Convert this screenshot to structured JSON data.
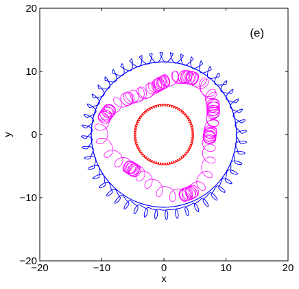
{
  "chart_data": {
    "type": "line",
    "title": "",
    "panel_label": "(e)",
    "xlabel": "x",
    "ylabel": "y",
    "xlim": [
      -20,
      20
    ],
    "ylim": [
      -20,
      20
    ],
    "xticks": [
      -20,
      -10,
      0,
      10,
      20
    ],
    "yticks": [
      -20,
      -10,
      0,
      10,
      20
    ],
    "xtick_labels": [
      "−20",
      "−10",
      "0",
      "10",
      "20"
    ],
    "ytick_labels": [
      "−20",
      "−10",
      "0",
      "10",
      "20"
    ],
    "grid": false,
    "legend": "none",
    "series": [
      {
        "color": "#0000ff",
        "shape": "outer ring of looping trajectories",
        "center": [
          0,
          0
        ],
        "inner_radius": 11.7,
        "outer_radius": 13.2,
        "loops": 48
      },
      {
        "color": "#ff00ff",
        "shape": "irregular looping trajectory inside ring",
        "center": [
          0,
          0
        ],
        "radius_min": 5.5,
        "radius_max": 12
      },
      {
        "color": "#ff0000",
        "shape": "small inner ring of tight loops",
        "center": [
          0,
          0
        ],
        "inner_radius": 4.5,
        "outer_radius": 4.8,
        "loops": 80
      }
    ]
  }
}
